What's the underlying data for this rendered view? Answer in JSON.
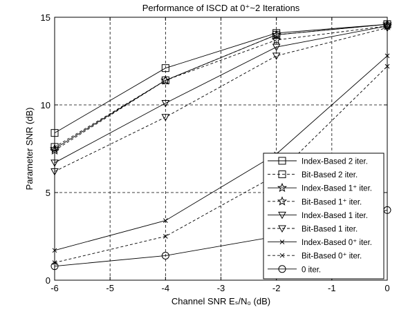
{
  "chart_data": {
    "type": "line",
    "title": "Performance of ISCD at 0⁺~2 Iterations",
    "xlabel": "Channel SNR Eₛ/N₀ (dB)",
    "ylabel": "Parameter SNR (dB)",
    "xlim": [
      -6,
      0
    ],
    "ylim": [
      0,
      15
    ],
    "xticks": [
      -6,
      -5,
      -4,
      -3,
      -2,
      -1,
      0
    ],
    "xtick_labels": [
      "-6",
      "-5",
      "-4",
      "-3",
      "-2",
      "-1",
      "0"
    ],
    "yticks": [
      0,
      5,
      10,
      15
    ],
    "ytick_labels": [
      "0",
      "5",
      "10",
      "15"
    ],
    "grid": true,
    "legend_position": "lower-right",
    "x": [
      -6,
      -4,
      -2,
      0
    ],
    "series": [
      {
        "name": "Index-Based 2 iter.",
        "values": [
          8.4,
          12.1,
          14.1,
          14.6
        ],
        "marker": "square",
        "dash": "solid"
      },
      {
        "name": "Bit-Based 2 iter.",
        "values": [
          7.6,
          11.4,
          14.0,
          14.6
        ],
        "marker": "square",
        "dash": "dashed"
      },
      {
        "name": "Index-Based 1⁺ iter.",
        "values": [
          7.5,
          11.4,
          14.0,
          14.6
        ],
        "marker": "star",
        "dash": "solid"
      },
      {
        "name": "Bit-Based 1⁺ iter.",
        "values": [
          7.4,
          11.4,
          13.7,
          14.5
        ],
        "marker": "star",
        "dash": "dashed"
      },
      {
        "name": "Index-Based 1 iter.",
        "values": [
          6.7,
          10.1,
          13.3,
          14.5
        ],
        "marker": "triangle-down",
        "dash": "solid"
      },
      {
        "name": "Bit-Based 1 iter.",
        "values": [
          6.2,
          9.3,
          12.8,
          14.4
        ],
        "marker": "triangle-down",
        "dash": "dashed"
      },
      {
        "name": "Index-Based 0⁺ iter.",
        "values": [
          1.7,
          3.4,
          7.2,
          12.8
        ],
        "marker": "x",
        "dash": "solid"
      },
      {
        "name": "Bit-Based 0⁺ iter.",
        "values": [
          1.0,
          2.5,
          6.0,
          12.2
        ],
        "marker": "x",
        "dash": "dashed"
      },
      {
        "name": "0 iter.",
        "values": [
          0.8,
          1.4,
          2.5,
          4.0
        ],
        "marker": "circle",
        "dash": "solid"
      }
    ]
  }
}
